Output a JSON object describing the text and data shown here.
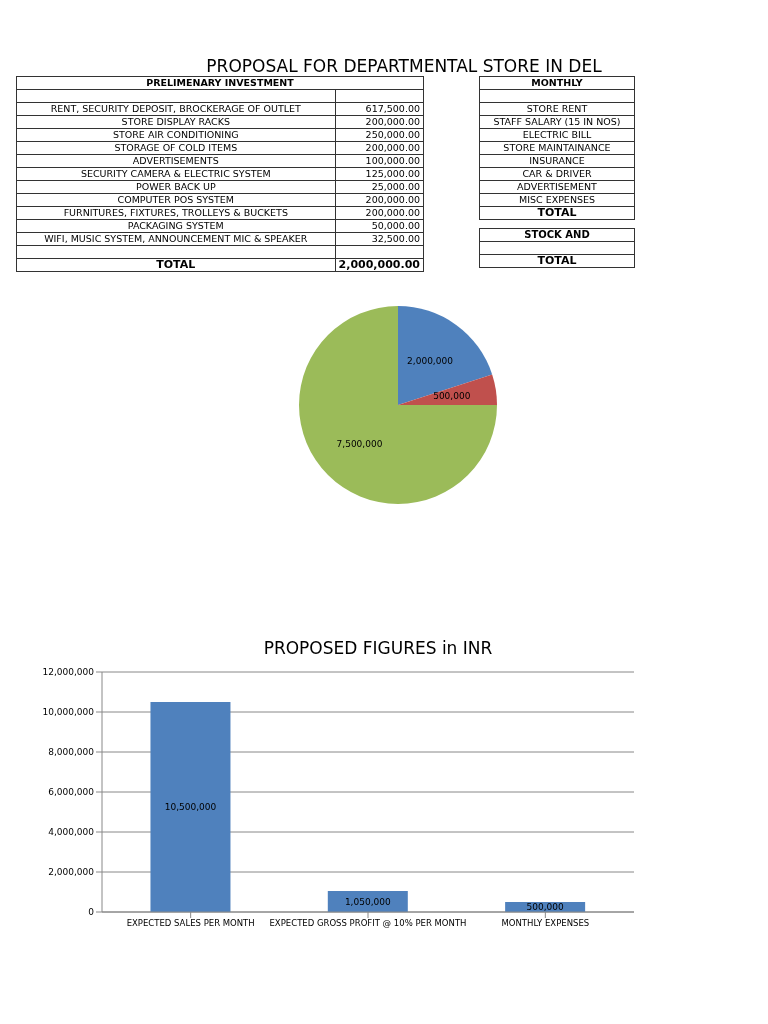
{
  "chart_data": [
    {
      "type": "other",
      "title": "PROPOSAL FOR DEPARTMENTAL STORE IN DEL",
      "subtitle": "PRELIMENARY INVESTMENT",
      "categories": [
        "RENT, SECURITY DEPOSIT, BROCKERAGE OF OUTLET",
        "STORE DISPLAY RACKS",
        "STORE AIR CONDITIONING",
        "STORAGE OF COLD ITEMS",
        "ADVERTISEMENTS",
        "SECURITY CAMERA & ELECTRIC SYSTEM",
        "POWER BACK UP",
        "COMPUTER POS SYSTEM",
        "FURNITURES, FIXTURES, TROLLEYS & BUCKETS",
        "PACKAGING SYSTEM",
        "WIFI, MUSIC SYSTEM, ANNOUNCEMENT MIC & SPEAKER",
        "TOTAL"
      ],
      "value_labels": [
        "617,500.00",
        "200,000.00",
        "250,000.00",
        "200,000.00",
        "100,000.00",
        "125,000.00",
        "25,000.00",
        "200,000.00",
        "200,000.00",
        "50,000.00",
        "32,500.00",
        "2,000,000.00"
      ]
    },
    {
      "type": "other",
      "subtitle": "MONTHLY",
      "categories": [
        "STORE RENT",
        "STAFF SALARY (15 IN NOS)",
        "ELECTRIC BILL",
        "STORE MAINTAINANCE",
        "INSURANCE",
        "CAR & DRIVER",
        "ADVERTISEMENT",
        "MISC EXPENSES",
        "TOTAL"
      ],
      "annotations": [
        "STOCK AND",
        "TOTAL"
      ]
    },
    {
      "type": "pie",
      "categories": [
        null,
        null,
        null
      ],
      "values": [
        2000000,
        500000,
        7500000
      ],
      "value_labels": [
        "2,000,000",
        "500,000",
        "7,500,000"
      ],
      "colors": [
        "#4f81bd",
        "#c0504d",
        "#9bbb59"
      ]
    },
    {
      "type": "bar",
      "title": "PROPOSED FIGURES in INR",
      "categories": [
        "EXPECTED SALES PER MONTH",
        "EXPECTED GROSS PROFIT @ 10% PER MONTH",
        "MONTHLY EXPENSES"
      ],
      "values": [
        10500000,
        1050000,
        500000
      ],
      "value_labels": [
        "10,500,000",
        "1,050,000",
        "500,000"
      ],
      "color": "#4f81bd",
      "ylim": [
        0,
        12000000
      ],
      "yticks": [
        0,
        {
          "value": 2000000,
          "label": "2,000,000"
        },
        {
          "value": 4000000,
          "label": "4,000,000"
        },
        {
          "value": 6000000,
          "label": "6,000,000"
        },
        {
          "value": 8000000,
          "label": "8,000,000"
        },
        {
          "value": 10000000,
          "label": "10,000,000"
        },
        {
          "value": 12000000,
          "label": "12,000,000"
        }
      ],
      "grid": "y"
    }
  ]
}
